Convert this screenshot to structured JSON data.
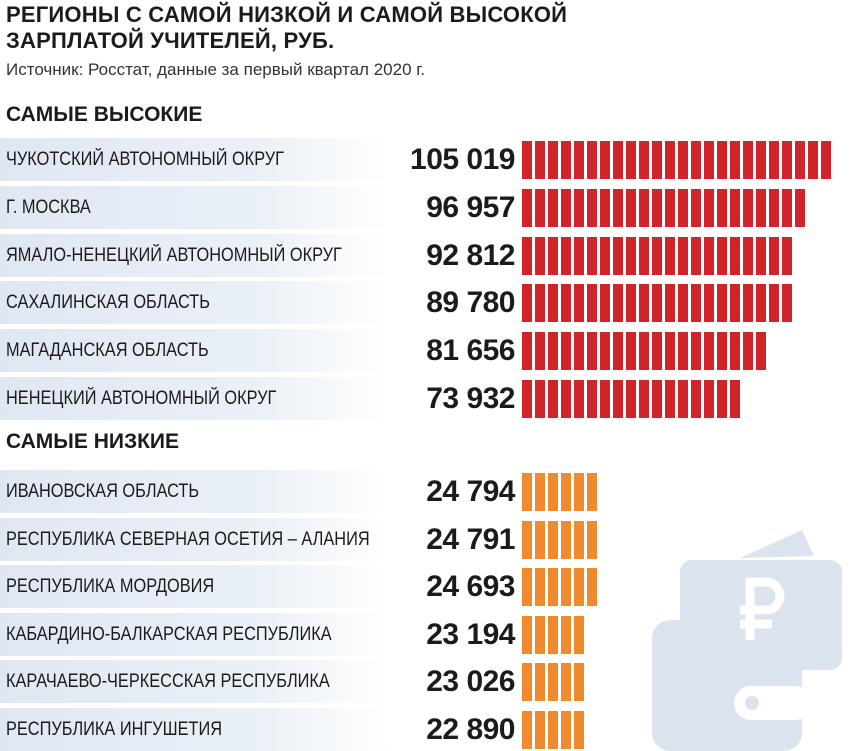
{
  "title": "Регионы с самой низкой и самой высокой зарплатой учителей, руб.",
  "source": "Источник: Росстат, данные за первый квартал 2020 г.",
  "colors": {
    "high_bar": "#d0242b",
    "low_bar": "#ef8a2e",
    "label_bg": "#e4ebf4",
    "wallet": "#dbe3ee"
  },
  "icons": [
    "wallet-icon",
    "ruble-icon"
  ],
  "chart_data": [
    {
      "type": "bar",
      "title": "Самые высокие",
      "categories": [
        "Чукотский автономный округ",
        "г. Москва",
        "Ямало-Ненецкий автономный округ",
        "Сахалинская область",
        "Магаданская область",
        "Ненецкий автономный округ"
      ],
      "values": [
        105019,
        96957,
        92812,
        89780,
        81656,
        73932
      ],
      "value_labels": [
        "105 019",
        "96 957",
        "92 812",
        "89 780",
        "81 656",
        "73 932"
      ]
    },
    {
      "type": "bar",
      "title": "Самые низкие",
      "categories": [
        "Ивановская область",
        "Республика Северная Осетия – Алания",
        "Республика Мордовия",
        "Кабардино-Балкарская Республика",
        "Карачаево-Черкесская Республика",
        "Республика Ингушетия"
      ],
      "values": [
        24794,
        24791,
        24693,
        23194,
        23026,
        22890
      ],
      "value_labels": [
        "24 794",
        "24 791",
        "24 693",
        "23 194",
        "23 026",
        "22 890"
      ]
    }
  ]
}
